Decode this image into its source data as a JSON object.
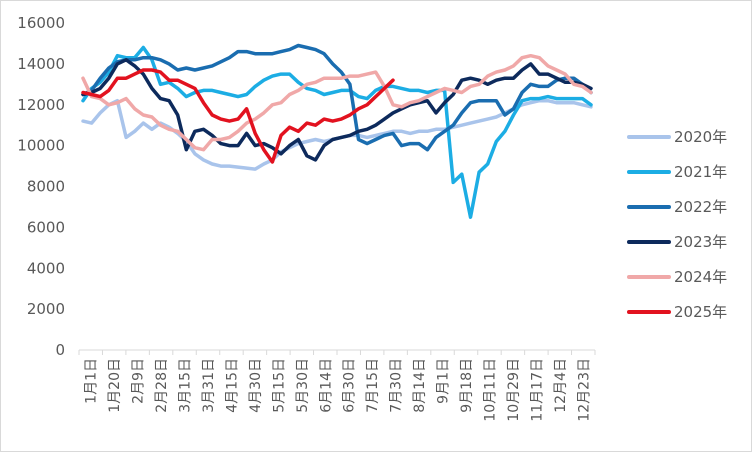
{
  "chart_data": {
    "type": "line",
    "title": "",
    "xlabel": "",
    "ylabel": "",
    "ylim": [
      0,
      16000
    ],
    "yticks": [
      0,
      2000,
      4000,
      6000,
      8000,
      10000,
      12000,
      14000,
      16000
    ],
    "grid": false,
    "legend_position": "right",
    "x_tick_labels": [
      "1月1日",
      "1月20日",
      "2月9日",
      "2月28日",
      "3月15日",
      "3月31日",
      "4月15日",
      "4月30日",
      "5月15日",
      "5月30日",
      "6月14日",
      "6月30日",
      "7月15日",
      "7月30日",
      "8月14日",
      "9月1日",
      "9月18日",
      "10月11日",
      "10月29日",
      "11月17日",
      "12月4日",
      "12月23日"
    ],
    "series": [
      {
        "name": "2020年",
        "color": "#a9c4eb",
        "values": [
          11200,
          11100,
          11600,
          12000,
          12200,
          10400,
          10700,
          11100,
          10800,
          11100,
          10900,
          10600,
          10200,
          9600,
          9300,
          9100,
          9000,
          9000,
          8950,
          8900,
          8850,
          9100,
          9300,
          9700,
          9900,
          10100,
          10200,
          10300,
          10200,
          10300,
          10400,
          10500,
          10500,
          10400,
          10500,
          10600,
          10700,
          10700,
          10600,
          10700,
          10700,
          10800,
          10800,
          10900,
          11000,
          11100,
          11200,
          11300,
          11400,
          11600,
          11800,
          12000,
          12100,
          12200,
          12200,
          12100,
          12100,
          12100,
          12000,
          11900
        ]
      },
      {
        "name": "2021年",
        "color": "#1cade4",
        "values": [
          12200,
          12800,
          13100,
          13600,
          14400,
          14300,
          14300,
          14800,
          14200,
          13000,
          13100,
          12800,
          12400,
          12600,
          12700,
          12700,
          12600,
          12500,
          12400,
          12500,
          12900,
          13200,
          13400,
          13500,
          13500,
          13100,
          12800,
          12700,
          12500,
          12600,
          12700,
          12700,
          12400,
          12300,
          12700,
          12900,
          12900,
          12800,
          12700,
          12700,
          12600,
          12700,
          12700,
          8200,
          8600,
          6500,
          8700,
          9100,
          10200,
          10700,
          11500,
          12200,
          12300,
          12300,
          12400,
          12300,
          12300,
          12300,
          12300,
          12000
        ]
      },
      {
        "name": "2022年",
        "color": "#1a6db0",
        "values": [
          12500,
          12700,
          13300,
          13800,
          14100,
          14200,
          14200,
          14300,
          14300,
          14200,
          14000,
          13700,
          13800,
          13700,
          13800,
          13900,
          14100,
          14300,
          14600,
          14600,
          14500,
          14500,
          14500,
          14600,
          14700,
          14900,
          14800,
          14700,
          14500,
          14000,
          13600,
          13000,
          10300,
          10100,
          10300,
          10500,
          10600,
          10000,
          10100,
          10100,
          9800,
          10400,
          10700,
          11000,
          11600,
          12100,
          12200,
          12200,
          12200,
          11500,
          11800,
          12600,
          13000,
          12900,
          12900,
          13200,
          13300,
          13300,
          13000,
          12600
        ]
      },
      {
        "name": "2023年",
        "color": "#0d2a5c",
        "values": [
          12500,
          12600,
          12800,
          13300,
          14000,
          14200,
          13900,
          13500,
          12800,
          12300,
          12200,
          11500,
          9800,
          10700,
          10800,
          10500,
          10100,
          10000,
          10000,
          10600,
          10000,
          10100,
          9900,
          9600,
          10000,
          10300,
          9500,
          9300,
          10000,
          10300,
          10400,
          10500,
          10700,
          10800,
          11000,
          11300,
          11600,
          11800,
          12000,
          12100,
          12200,
          11600,
          12100,
          12500,
          13200,
          13300,
          13200,
          13000,
          13200,
          13300,
          13300,
          13700,
          14000,
          13500,
          13500,
          13300,
          13100,
          13100,
          13000,
          12800
        ]
      },
      {
        "name": "2024年",
        "color": "#f0a8a8",
        "values": [
          13300,
          12400,
          12300,
          12000,
          12100,
          12300,
          11800,
          11500,
          11400,
          11000,
          10800,
          10700,
          10300,
          9900,
          9800,
          10300,
          10300,
          10400,
          10700,
          11100,
          11300,
          11600,
          12000,
          12100,
          12500,
          12700,
          13000,
          13100,
          13300,
          13300,
          13300,
          13400,
          13400,
          13500,
          13600,
          12900,
          12000,
          11900,
          12100,
          12200,
          12400,
          12600,
          12800,
          12700,
          12600,
          12900,
          13000,
          13400,
          13600,
          13700,
          13900,
          14300,
          14400,
          14300,
          13900,
          13700,
          13500,
          13000,
          12900,
          12600
        ]
      },
      {
        "name": "2025年",
        "color": "#e2121f",
        "values": [
          12600,
          12500,
          12400,
          12700,
          13300,
          13300,
          13500,
          13700,
          13700,
          13600,
          13200,
          13200,
          13000,
          12800,
          12100,
          11500,
          11300,
          11200,
          11300,
          11800,
          10600,
          9800,
          9200,
          10500,
          10900,
          10700,
          11100,
          11000,
          11300,
          11200,
          11300,
          11500,
          11800,
          12000,
          12400,
          12800,
          13200
        ]
      }
    ]
  }
}
